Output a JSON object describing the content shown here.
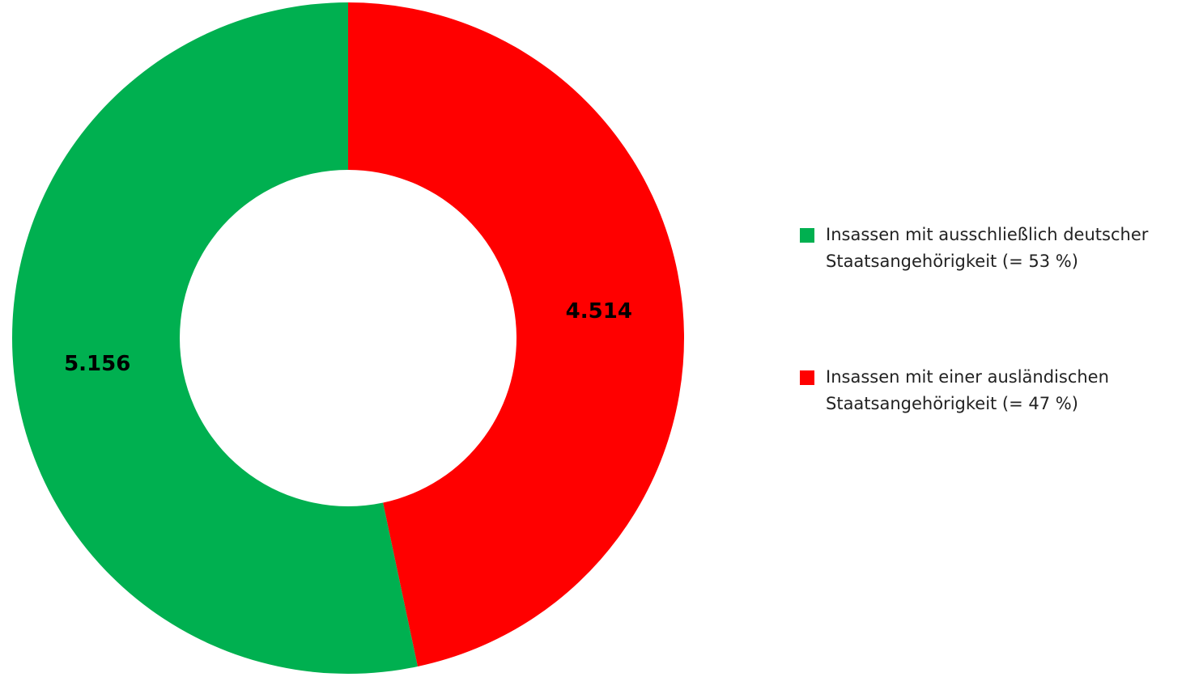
{
  "chart_data": {
    "type": "donut",
    "categories": [
      "Insassen mit ausschließlich deutscher Staatsangehörigkeit (= 53 %)",
      "Insassen mit einer ausländischen Staatsangehörigkeit (= 47 %)"
    ],
    "values": [
      5156,
      4514
    ],
    "value_labels": [
      "5.156",
      "4.514"
    ],
    "colors": [
      "#00b050",
      "#ff0000"
    ],
    "legend": "right"
  }
}
